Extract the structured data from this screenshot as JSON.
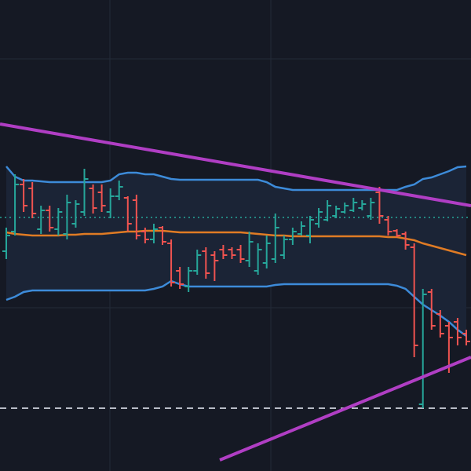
{
  "chart_data": {
    "type": "ohlc",
    "ylim": [
      0,
      600
    ],
    "up_color": "#26a69a",
    "down_color": "#ef5350",
    "open": [
      280,
      305,
      365,
      360,
      308,
      332,
      308,
      302,
      315,
      330,
      360,
      355,
      330,
      350,
      348,
      345,
      305,
      295,
      310,
      290,
      255,
      235,
      255,
      280,
      275,
      282,
      282,
      282,
      268,
      255,
      265,
      270,
      275,
      295,
      302,
      300,
      315,
      320,
      325,
      330,
      332,
      335,
      325,
      355,
      320,
      306,
      302,
      285,
      85,
      228,
      200,
      185,
      190,
      175
    ],
    "high": [
      310,
      378,
      372,
      368,
      338,
      338,
      335,
      352,
      345,
      385,
      365,
      365,
      360,
      370,
      350,
      352,
      310,
      315,
      312,
      295,
      260,
      260,
      282,
      285,
      280,
      288,
      285,
      288,
      305,
      290,
      300,
      328,
      300,
      310,
      318,
      325,
      335,
      345,
      338,
      342,
      348,
      345,
      348,
      362,
      325,
      308,
      305,
      290,
      232,
      232,
      205,
      190,
      195,
      180
    ],
    "low": [
      270,
      300,
      330,
      322,
      302,
      305,
      300,
      295,
      310,
      325,
      328,
      330,
      322,
      345,
      305,
      295,
      290,
      290,
      288,
      235,
      232,
      228,
      250,
      245,
      242,
      270,
      270,
      265,
      260,
      250,
      258,
      265,
      270,
      288,
      300,
      290,
      310,
      318,
      322,
      328,
      330,
      332,
      320,
      315,
      300,
      298,
      282,
      145,
      80,
      180,
      170,
      125,
      160,
      160
    ],
    "close": [
      300,
      365,
      338,
      328,
      332,
      310,
      330,
      342,
      340,
      372,
      335,
      338,
      350,
      362,
      315,
      300,
      295,
      308,
      292,
      240,
      238,
      255,
      275,
      252,
      268,
      275,
      275,
      270,
      292,
      282,
      290,
      310,
      295,
      305,
      312,
      320,
      330,
      338,
      334,
      338,
      342,
      340,
      342,
      325,
      305,
      300,
      288,
      160,
      225,
      185,
      175,
      170,
      170,
      165
    ],
    "bands": [
      {
        "color": "#3d8bd9",
        "values": [
          388,
          375,
          370,
          370,
          369,
          368,
          368,
          368,
          368,
          368,
          368,
          368,
          370,
          378,
          380,
          380,
          378,
          378,
          375,
          372,
          371,
          371,
          371,
          371,
          371,
          371,
          371,
          371,
          371,
          371,
          368,
          362,
          360,
          358,
          358,
          358,
          358,
          358,
          358,
          358,
          358,
          358,
          358,
          358,
          358,
          358,
          362,
          365,
          372,
          374,
          378,
          382,
          387,
          388
        ]
      },
      {
        "color": "#e07b24",
        "values": [
          304,
          302,
          301,
          300,
          300,
          300,
          300,
          301,
          301,
          302,
          302,
          302,
          303,
          304,
          305,
          305,
          306,
          306,
          306,
          305,
          304,
          304,
          304,
          304,
          304,
          304,
          304,
          304,
          303,
          302,
          301,
          300,
          300,
          299,
          299,
          299,
          299,
          299,
          299,
          299,
          299,
          299,
          299,
          299,
          298,
          298,
          296,
          294,
          290,
          287,
          284,
          281,
          278,
          275
        ]
      },
      {
        "color": "#3d8bd9",
        "values": [
          218,
          222,
          228,
          230,
          230,
          230,
          230,
          230,
          230,
          230,
          230,
          230,
          230,
          230,
          230,
          230,
          230,
          232,
          235,
          242,
          238,
          235,
          235,
          235,
          235,
          235,
          235,
          235,
          235,
          235,
          235,
          237,
          238,
          238,
          238,
          238,
          238,
          238,
          238,
          238,
          238,
          238,
          238,
          238,
          238,
          236,
          232,
          222,
          212,
          205,
          198,
          190,
          180,
          172
        ]
      }
    ]
  }
}
